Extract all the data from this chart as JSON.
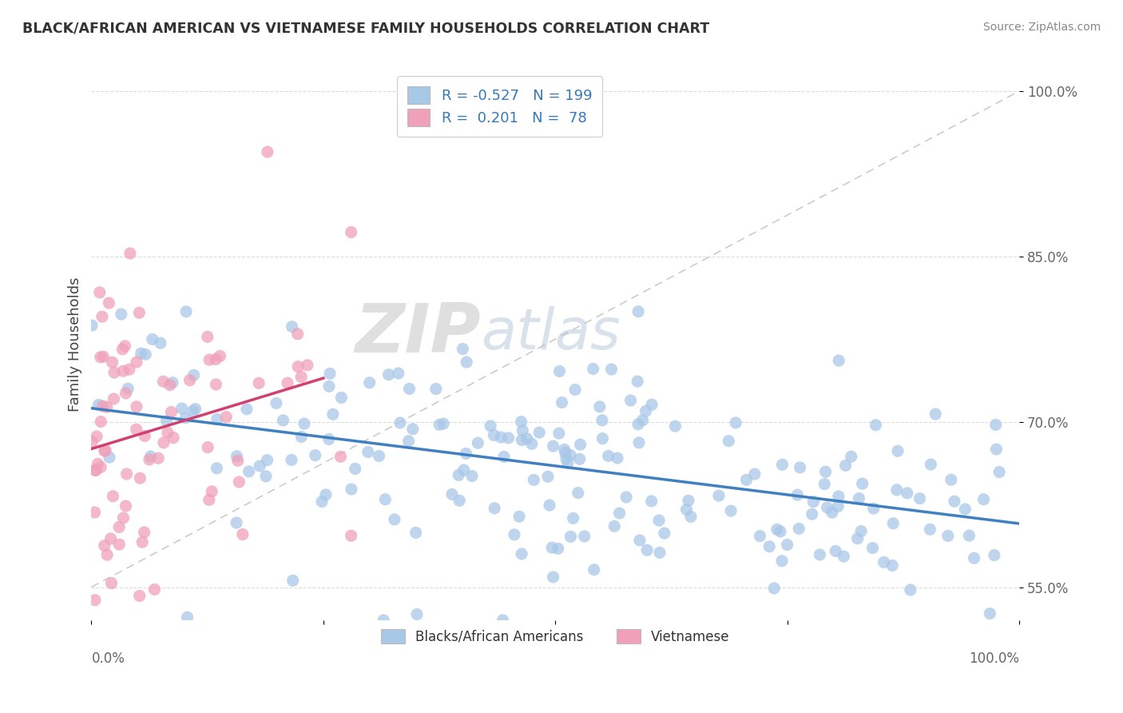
{
  "title": "BLACK/AFRICAN AMERICAN VS VIETNAMESE FAMILY HOUSEHOLDS CORRELATION CHART",
  "source": "Source: ZipAtlas.com",
  "ylabel": "Family Households",
  "xlim": [
    0.0,
    100.0
  ],
  "ylim": [
    52.0,
    102.0
  ],
  "yticks": [
    55.0,
    70.0,
    85.0,
    100.0
  ],
  "ytick_labels": [
    "55.0%",
    "70.0%",
    "85.0%",
    "100.0%"
  ],
  "blue_R": -0.527,
  "blue_N": 199,
  "pink_R": 0.201,
  "pink_N": 78,
  "blue_color": "#A8C8E8",
  "pink_color": "#F0A0B8",
  "blue_line_color": "#4080C0",
  "pink_line_color": "#D04070",
  "legend_label_blue": "Blacks/African Americans",
  "legend_label_pink": "Vietnamese",
  "background_color": "#FFFFFF",
  "grid_color": "#D8D8D8",
  "ref_line_color": "#CCCCCC",
  "watermark_zip_color": "#C8C8C8",
  "watermark_atlas_color": "#B0C8D8"
}
